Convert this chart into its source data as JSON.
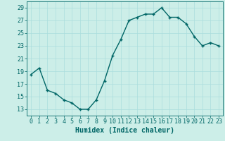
{
  "title": "",
  "xlabel": "Humidex (Indice chaleur)",
  "ylabel": "",
  "x": [
    0,
    1,
    2,
    3,
    4,
    5,
    6,
    7,
    8,
    9,
    10,
    11,
    12,
    13,
    14,
    15,
    16,
    17,
    18,
    19,
    20,
    21,
    22,
    23
  ],
  "y": [
    18.5,
    19.5,
    16.0,
    15.5,
    14.5,
    14.0,
    13.0,
    13.0,
    14.5,
    17.5,
    21.5,
    24.0,
    27.0,
    27.5,
    28.0,
    28.0,
    29.0,
    27.5,
    27.5,
    26.5,
    24.5,
    23.0,
    23.5,
    23.0
  ],
  "line_color": "#006666",
  "marker_color": "#006666",
  "bg_color": "#cceee8",
  "grid_color": "#aadddd",
  "text_color": "#006666",
  "ylim": [
    12,
    30
  ],
  "yticks": [
    13,
    15,
    17,
    19,
    21,
    23,
    25,
    27,
    29
  ],
  "xlim": [
    -0.5,
    23.5
  ],
  "xticks": [
    0,
    1,
    2,
    3,
    4,
    5,
    6,
    7,
    8,
    9,
    10,
    11,
    12,
    13,
    14,
    15,
    16,
    17,
    18,
    19,
    20,
    21,
    22,
    23
  ],
  "xtick_labels": [
    "0",
    "1",
    "2",
    "3",
    "4",
    "5",
    "6",
    "7",
    "8",
    "9",
    "10",
    "11",
    "12",
    "13",
    "14",
    "15",
    "16",
    "17",
    "18",
    "19",
    "20",
    "21",
    "22",
    "23"
  ],
  "linewidth": 1.0,
  "markersize": 2.5,
  "xlabel_fontsize": 7,
  "tick_fontsize": 6
}
